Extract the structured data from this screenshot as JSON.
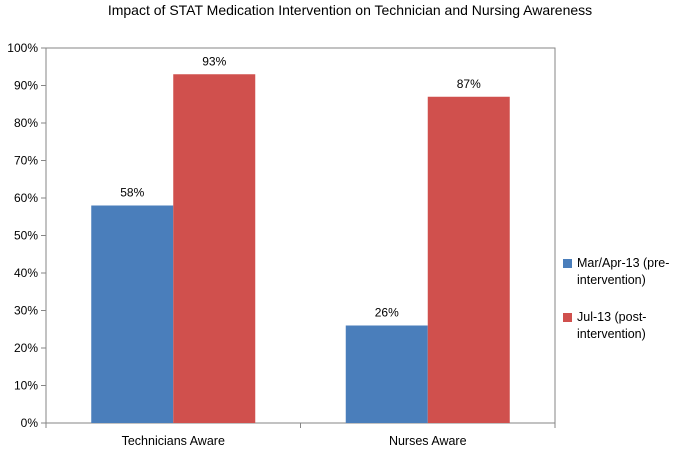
{
  "chart_data": {
    "type": "bar",
    "title": "Impact of STAT Medication Intervention on Technician and Nursing Awareness",
    "categories": [
      "Technicians Aware",
      "Nurses Aware"
    ],
    "series": [
      {
        "name": "Mar/Apr-13 (pre-intervention)",
        "values": [
          58,
          26
        ],
        "labels": [
          "58%",
          "26%"
        ],
        "color": "#4a7ebb"
      },
      {
        "name": "Jul-13 (post-intervention)",
        "values": [
          93,
          87
        ],
        "labels": [
          "93%",
          "87%"
        ],
        "color": "#d0504d"
      }
    ],
    "yticks": [
      "0%",
      "10%",
      "20%",
      "30%",
      "40%",
      "50%",
      "60%",
      "70%",
      "80%",
      "90%",
      "100%"
    ],
    "ylim": [
      0,
      100
    ],
    "grid": false,
    "legend_position": "right"
  }
}
